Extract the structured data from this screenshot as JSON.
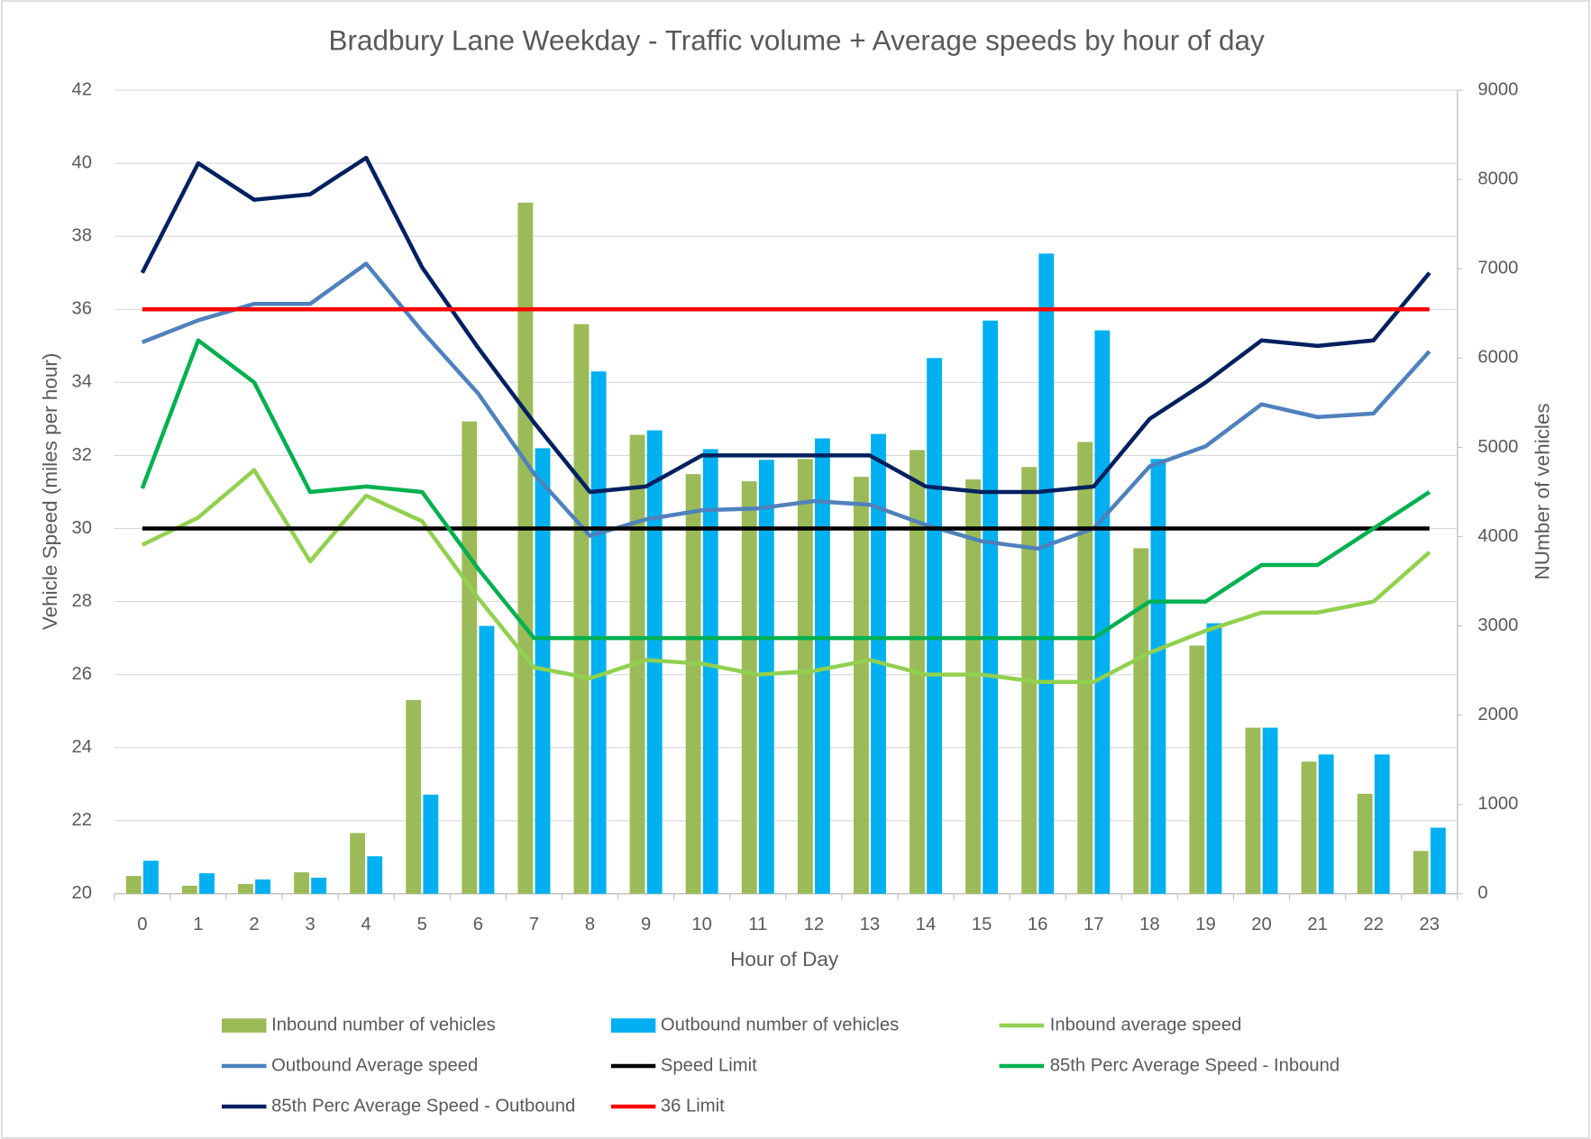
{
  "chart_data": {
    "type": "combo",
    "title": "Bradbury Lane Weekday - Traffic volume + Average speeds by hour of day",
    "x_label": "Hour of Day",
    "y_label": "Vehicle Speed (miles per hour)",
    "y2_label": "NUmber of vehicles",
    "categories": [
      "0",
      "1",
      "2",
      "3",
      "4",
      "5",
      "6",
      "7",
      "8",
      "9",
      "10",
      "11",
      "12",
      "13",
      "14",
      "15",
      "16",
      "17",
      "18",
      "19",
      "20",
      "21",
      "22",
      "23"
    ],
    "ylim": [
      20,
      42
    ],
    "yticks": [
      20,
      22,
      24,
      26,
      28,
      30,
      32,
      34,
      36,
      38,
      40,
      42
    ],
    "y2lim": [
      0,
      9000
    ],
    "y2ticks": [
      0,
      1000,
      2000,
      3000,
      4000,
      5000,
      6000,
      7000,
      8000,
      9000
    ],
    "grid": true,
    "legend": "bottom",
    "series": [
      {
        "name": "Inbound number of vehicles",
        "type": "bar",
        "axis": "y2",
        "color": "#9bbb59",
        "values": [
          200,
          90,
          110,
          240,
          680,
          2170,
          5290,
          7740,
          6380,
          5140,
          4700,
          4620,
          4870,
          4670,
          4970,
          4640,
          4780,
          5060,
          3870,
          2780,
          1860,
          1480,
          1120,
          480
        ]
      },
      {
        "name": "Outbound number of vehicles",
        "type": "bar",
        "axis": "y2",
        "color": "#00b0f0",
        "values": [
          370,
          230,
          160,
          180,
          420,
          1110,
          3000,
          4990,
          5850,
          5190,
          4980,
          4860,
          5100,
          5150,
          6000,
          6420,
          7170,
          6310,
          4870,
          3030,
          1860,
          1560,
          1560,
          740
        ]
      },
      {
        "name": "Inbound average speed",
        "type": "line",
        "color": "#92d050",
        "values": [
          29.55,
          30.3,
          31.6,
          29.1,
          30.9,
          30.2,
          28.1,
          26.2,
          25.9,
          26.4,
          26.3,
          26.0,
          26.1,
          26.4,
          26.0,
          26.0,
          25.8,
          25.8,
          26.6,
          27.2,
          27.7,
          27.7,
          28.0,
          29.35
        ]
      },
      {
        "name": "Outbound Average speed",
        "type": "line",
        "color": "#4f81bd",
        "values": [
          35.1,
          35.7,
          36.15,
          36.15,
          37.25,
          35.4,
          33.7,
          31.5,
          29.8,
          30.25,
          30.5,
          30.55,
          30.75,
          30.65,
          30.1,
          29.65,
          29.45,
          30.0,
          31.7,
          32.25,
          33.4,
          33.05,
          33.15,
          34.85
        ]
      },
      {
        "name": "Speed Limit",
        "type": "line",
        "color": "#000000",
        "values": [
          30,
          30,
          30,
          30,
          30,
          30,
          30,
          30,
          30,
          30,
          30,
          30,
          30,
          30,
          30,
          30,
          30,
          30,
          30,
          30,
          30,
          30,
          30,
          30
        ]
      },
      {
        "name": "85th Perc Average Speed  - Inbound",
        "type": "line",
        "color": "#00b050",
        "values": [
          31.1,
          35.15,
          34.0,
          31.0,
          31.15,
          31.0,
          28.9,
          27.0,
          27.0,
          27.0,
          27.0,
          27.0,
          27.0,
          27.0,
          27.0,
          27.0,
          27.0,
          27.0,
          28.0,
          28.0,
          29.0,
          29.0,
          30.0,
          31.0
        ]
      },
      {
        "name": "85th Perc Average Speed  - Outbound",
        "type": "line",
        "color": "#002060",
        "values": [
          37.0,
          40.0,
          39.0,
          39.15,
          40.15,
          37.15,
          34.95,
          32.9,
          31.0,
          31.15,
          32.0,
          32.0,
          32.0,
          32.0,
          31.15,
          31.0,
          31.0,
          31.15,
          33.0,
          34.0,
          35.15,
          35.0,
          35.15,
          37.0
        ]
      },
      {
        "name": "36 Limit",
        "type": "line",
        "color": "#ff0000",
        "values": [
          36,
          36,
          36,
          36,
          36,
          36,
          36,
          36,
          36,
          36,
          36,
          36,
          36,
          36,
          36,
          36,
          36,
          36,
          36,
          36,
          36,
          36,
          36,
          36
        ]
      }
    ]
  }
}
